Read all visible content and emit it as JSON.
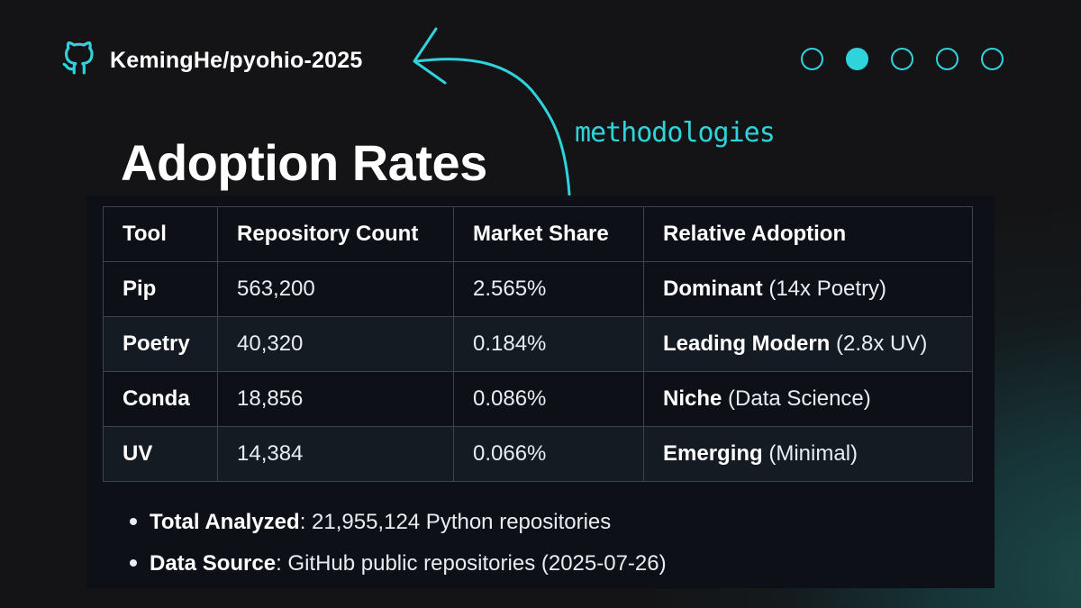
{
  "header": {
    "repo_name": "KemingHe/pyohio-2025",
    "slides_total": 5,
    "active_slide": 2,
    "annotation": "methodologies"
  },
  "title": "Adoption Rates",
  "colors": {
    "accent": "#2fd3dc",
    "panel": "#0d1117",
    "background": "#141416"
  },
  "table": {
    "headers": [
      "Tool",
      "Repository Count",
      "Market Share",
      "Relative Adoption"
    ],
    "rows": [
      {
        "tool": "Pip",
        "count": "563,200",
        "share": "2.565%",
        "adoption_label": "Dominant",
        "adoption_note": " (14x Poetry)"
      },
      {
        "tool": "Poetry",
        "count": "40,320",
        "share": "0.184%",
        "adoption_label": "Leading Modern",
        "adoption_note": " (2.8x UV)"
      },
      {
        "tool": "Conda",
        "count": "18,856",
        "share": "0.086%",
        "adoption_label": "Niche",
        "adoption_note": " (Data Science)"
      },
      {
        "tool": "UV",
        "count": "14,384",
        "share": "0.066%",
        "adoption_label": "Emerging",
        "adoption_note": " (Minimal)"
      }
    ]
  },
  "notes": [
    {
      "label": "Total Analyzed",
      "text": ": 21,955,124 Python repositories"
    },
    {
      "label": "Data Source",
      "text": ": GitHub public repositories (2025-07-26)"
    }
  ],
  "icons": {
    "repo": "github-icon"
  }
}
